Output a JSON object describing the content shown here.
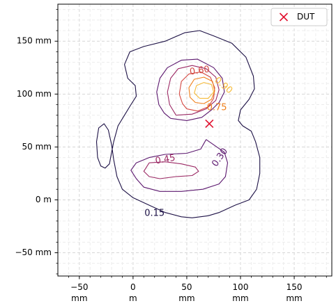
{
  "chart_data": {
    "type": "contour",
    "title": "",
    "xlabel": "",
    "ylabel": "",
    "xlim": [
      -70,
      185
    ],
    "ylim": [
      -72,
      185
    ],
    "grid": true,
    "x_ticks": [
      {
        "value": -50,
        "line1": "−50",
        "line2": "mm"
      },
      {
        "value": 0,
        "line1": "0",
        "line2": "m"
      },
      {
        "value": 50,
        "line1": "50",
        "line2": "mm"
      },
      {
        "value": 100,
        "line1": "100",
        "line2": "mm"
      },
      {
        "value": 150,
        "line1": "150",
        "line2": "mm"
      }
    ],
    "y_ticks": [
      {
        "value": 150,
        "label": "150 mm"
      },
      {
        "value": 100,
        "label": "100 mm"
      },
      {
        "value": 50,
        "label": "50 mm"
      },
      {
        "value": 0,
        "label": "0 m"
      },
      {
        "value": -50,
        "label": "−50 mm"
      }
    ],
    "legend": {
      "position": "top-right",
      "entries": [
        {
          "label": "DUT",
          "marker": "x",
          "color": "#e0102e"
        }
      ]
    },
    "marker_point": {
      "name": "DUT",
      "x": 71,
      "y": 72
    },
    "levels": [
      {
        "value": 0.15,
        "label": "0.15",
        "color": "#1c1045",
        "label_at": [
          20,
          -13
        ],
        "label_angle": 0,
        "paths": [
          [
            [
              55,
              -17
            ],
            [
              70,
              -15
            ],
            [
              80,
              -12
            ],
            [
              95,
              -5
            ],
            [
              108,
              0
            ],
            [
              115,
              10
            ],
            [
              118,
              25
            ],
            [
              118,
              40
            ],
            [
              114,
              55
            ],
            [
              110,
              65
            ],
            [
              102,
              70
            ],
            [
              98,
              75
            ],
            [
              100,
              85
            ],
            [
              108,
              95
            ],
            [
              113,
              105
            ],
            [
              112,
              117
            ],
            [
              105,
              135
            ],
            [
              92,
              148
            ],
            [
              75,
              155
            ],
            [
              62,
              160
            ],
            [
              48,
              158
            ],
            [
              30,
              150
            ],
            [
              10,
              145
            ],
            [
              -3,
              140
            ],
            [
              -8,
              128
            ],
            [
              -5,
              115
            ],
            [
              2,
              108
            ],
            [
              3,
              98
            ],
            [
              -2,
              90
            ],
            [
              -8,
              80
            ],
            [
              -14,
              70
            ],
            [
              -18,
              55
            ],
            [
              -20,
              45
            ],
            [
              -22,
              34
            ],
            [
              -26,
              30
            ],
            [
              -30,
              32
            ],
            [
              -33,
              40
            ],
            [
              -34,
              55
            ],
            [
              -32,
              68
            ],
            [
              -27,
              72
            ],
            [
              -23,
              66
            ],
            [
              -20,
              52
            ],
            [
              -18,
              38
            ],
            [
              -15,
              22
            ],
            [
              -10,
              10
            ],
            [
              0,
              2
            ],
            [
              15,
              -5
            ],
            [
              30,
              -12
            ],
            [
              45,
              -16
            ],
            [
              55,
              -17
            ]
          ]
        ]
      },
      {
        "value": 0.3,
        "label": "0.30",
        "color": "#5b176e",
        "label_at": [
          81,
          40
        ],
        "label_angle": 55,
        "paths": [
          [
            [
              68,
              57
            ],
            [
              78,
              50
            ],
            [
              85,
              45
            ],
            [
              88,
              35
            ],
            [
              86,
              22
            ],
            [
              80,
              15
            ],
            [
              65,
              10
            ],
            [
              45,
              8
            ],
            [
              25,
              8
            ],
            [
              10,
              12
            ],
            [
              3,
              20
            ],
            [
              -2,
              28
            ],
            [
              3,
              35
            ],
            [
              15,
              40
            ],
            [
              30,
              43
            ],
            [
              50,
              44
            ],
            [
              63,
              48
            ],
            [
              68,
              57
            ]
          ],
          [
            [
              35,
              77
            ],
            [
              50,
              75
            ],
            [
              64,
              78
            ],
            [
              73,
              85
            ],
            [
              80,
              92
            ],
            [
              85,
              102
            ],
            [
              83,
              115
            ],
            [
              75,
              125
            ],
            [
              60,
              133
            ],
            [
              45,
              132
            ],
            [
              32,
              125
            ],
            [
              25,
              115
            ],
            [
              22,
              102
            ],
            [
              24,
              90
            ],
            [
              29,
              82
            ],
            [
              35,
              77
            ]
          ]
        ]
      },
      {
        "value": 0.45,
        "label": "0.45",
        "color": "#9b2964",
        "label_at": [
          30,
          38
        ],
        "label_angle": 10,
        "paths": [
          [
            [
              15,
              35
            ],
            [
              30,
              36
            ],
            [
              45,
              34
            ],
            [
              58,
              31
            ],
            [
              61,
              27
            ],
            [
              55,
              23
            ],
            [
              40,
              22
            ],
            [
              25,
              20
            ],
            [
              15,
              22
            ],
            [
              10,
              27
            ],
            [
              15,
              35
            ]
          ],
          [
            [
              40,
              80
            ],
            [
              55,
              81
            ],
            [
              68,
              86
            ],
            [
              77,
              94
            ],
            [
              80,
              104
            ],
            [
              77,
              116
            ],
            [
              68,
              124
            ],
            [
              55,
              127
            ],
            [
              42,
              124
            ],
            [
              35,
              115
            ],
            [
              32,
              102
            ],
            [
              34,
              90
            ],
            [
              40,
              80
            ]
          ]
        ]
      },
      {
        "value": 0.6,
        "label": "0.60",
        "color": "#d44842",
        "label_at": [
          62,
          122
        ],
        "label_angle": 8,
        "paths": [
          [
            [
              50,
              86
            ],
            [
              60,
              84
            ],
            [
              70,
              88
            ],
            [
              75,
              96
            ],
            [
              76,
              106
            ],
            [
              72,
              116
            ],
            [
              63,
              121
            ],
            [
              52,
              119
            ],
            [
              45,
              112
            ],
            [
              43,
              100
            ],
            [
              46,
              91
            ],
            [
              50,
              86
            ]
          ]
        ]
      },
      {
        "value": 0.75,
        "label": "0.75",
        "color": "#f07f1b",
        "label_at": [
          78,
          87
        ],
        "label_angle": 0,
        "paths": [
          [
            [
              58,
              92
            ],
            [
              66,
              91
            ],
            [
              73,
              95
            ],
            [
              76,
              103
            ],
            [
              74,
              112
            ],
            [
              66,
              116
            ],
            [
              57,
              114
            ],
            [
              52,
              106
            ],
            [
              53,
              97
            ],
            [
              58,
              92
            ]
          ]
        ]
      },
      {
        "value": 0.9,
        "label": "0.90",
        "color": "#f6bb3b",
        "label_at": [
          84,
          108
        ],
        "label_angle": -40,
        "paths": [
          [
            [
              62,
              96
            ],
            [
              70,
              96
            ],
            [
              75,
              102
            ],
            [
              73,
              109
            ],
            [
              66,
              111
            ],
            [
              59,
              108
            ],
            [
              57,
              101
            ],
            [
              62,
              96
            ]
          ]
        ]
      }
    ]
  }
}
